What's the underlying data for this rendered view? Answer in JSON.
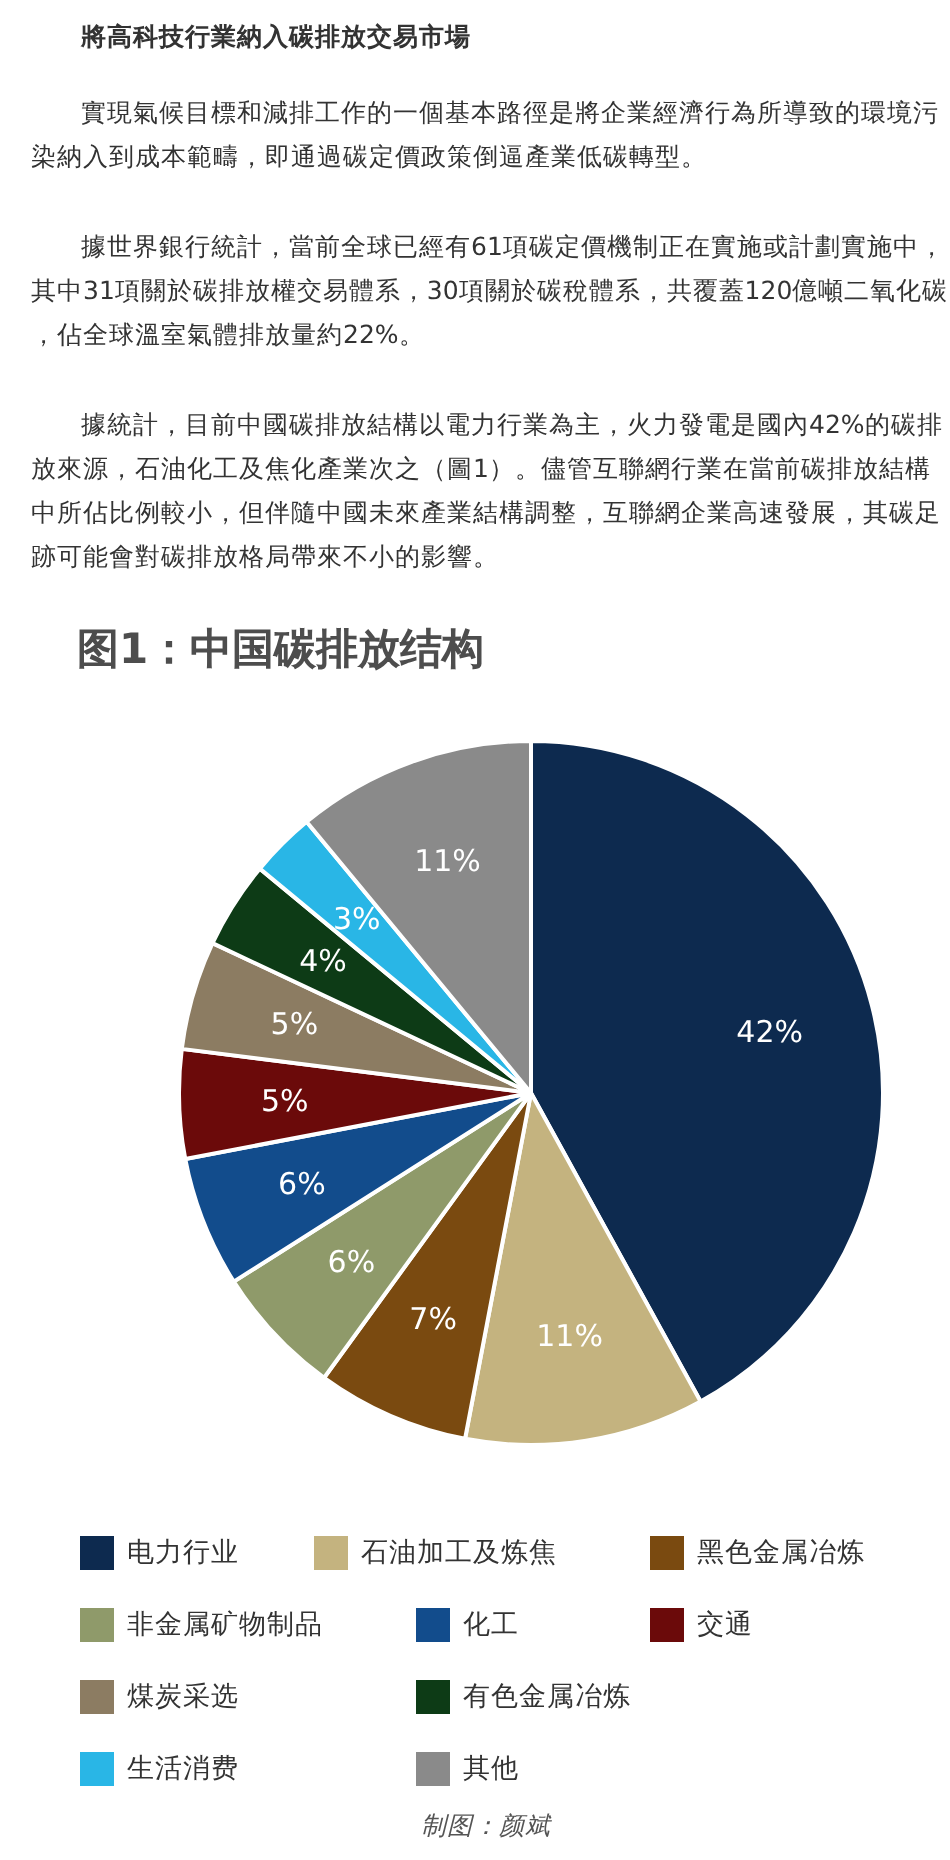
{
  "chart_data": {
    "type": "pie",
    "title": "图1：中国碳排放结构",
    "categories": [
      "电力行业",
      "石油加工及炼焦",
      "黑色金属冶炼",
      "非金属矿物制品",
      "化工",
      "交通",
      "煤炭采选",
      "有色金属冶炼",
      "生活消费",
      "其他"
    ],
    "values": [
      42,
      11,
      7,
      6,
      6,
      5,
      5,
      4,
      3,
      11
    ],
    "colors": [
      "#0d2a4f",
      "#c4b37f",
      "#7a4a10",
      "#8f9a6a",
      "#124c8c",
      "#6b0a0a",
      "#8c7c62",
      "#0d3b16",
      "#29b6e6",
      "#8a8a8a"
    ],
    "value_labels": [
      "42%",
      "11%",
      "7%",
      "6%",
      "6%",
      "5%",
      "5%",
      "4%",
      "3%",
      "11%"
    ],
    "legend": "bottom",
    "annotations": [
      "將高科技行業納入碳排放交易市場",
      "實現氣候目標和減排工作的一個基本路徑是將企業經濟行為所導致的環境污染納入到成本範疇，即通過碳定價政策倒逼產業低碳轉型。",
      "據世界銀行統計，當前全球已經有61項碳定價機制正在實施或計劃實施中，其中31項關於碳排放權交易體系，30項關於碳稅體系，共覆蓋120億噸二氧化碳，佔全球溫室氣體排放量約22%。",
      "據統計，目前中國碳排放結構以電力行業為主，火力發電是國內42%的碳排放來源，石油化工及焦化產業次之（圖1）。儘管互聯網行業在當前碳排放結構中所佔比例較小，但伴隨中國未來產業結構調整，互聯網企業高速發展，其碳足跡可能會對碳排放格局帶來不小的影響。",
      "制图：颜斌"
    ]
  }
}
